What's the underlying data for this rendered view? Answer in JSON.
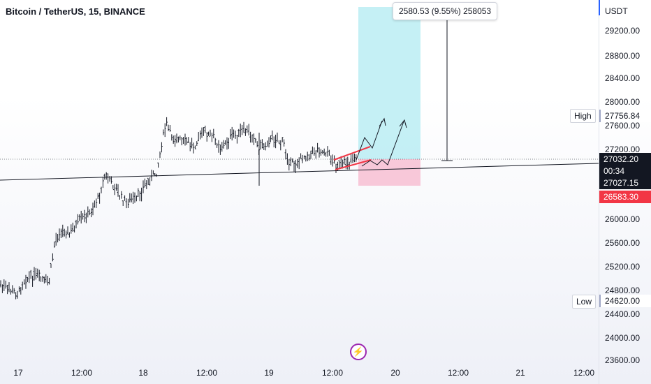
{
  "header": {
    "symbol_title": "Bitcoin / TetherUS, 15, BINANCE"
  },
  "measure_tooltip": {
    "text": "2580.53 (9.55%) 258053"
  },
  "price_axis": {
    "unit": "USDT",
    "ticks": [
      "29200.00",
      "28800.00",
      "28400.00",
      "28000.00",
      "27600.00",
      "27200.00",
      "26000.00",
      "25600.00",
      "25200.00",
      "24800.00",
      "24400.00",
      "24000.00",
      "23600.00"
    ],
    "last_price": "27032.20",
    "countdown": "00:34",
    "line_price": "27027.15",
    "stop_price": "26583.30",
    "high_value": "27756.84",
    "low_value": "24620.00"
  },
  "labels": {
    "high": "High",
    "low": "Low"
  },
  "time_axis": {
    "ticks": [
      "17",
      "12:00",
      "18",
      "12:00",
      "19",
      "12:00",
      "20",
      "12:00",
      "21",
      "12:00"
    ]
  },
  "position_tool": {
    "profit_color": "#b2ebf2",
    "loss_color": "#f8bbd0",
    "entry": 27032.2,
    "target": 29612.73,
    "stop": 26583.3
  },
  "icons": {
    "streams": "lightning-icon"
  },
  "colors": {
    "candles": "#131722",
    "channel": "#f23645",
    "axis_accent": "#2962ff"
  }
}
